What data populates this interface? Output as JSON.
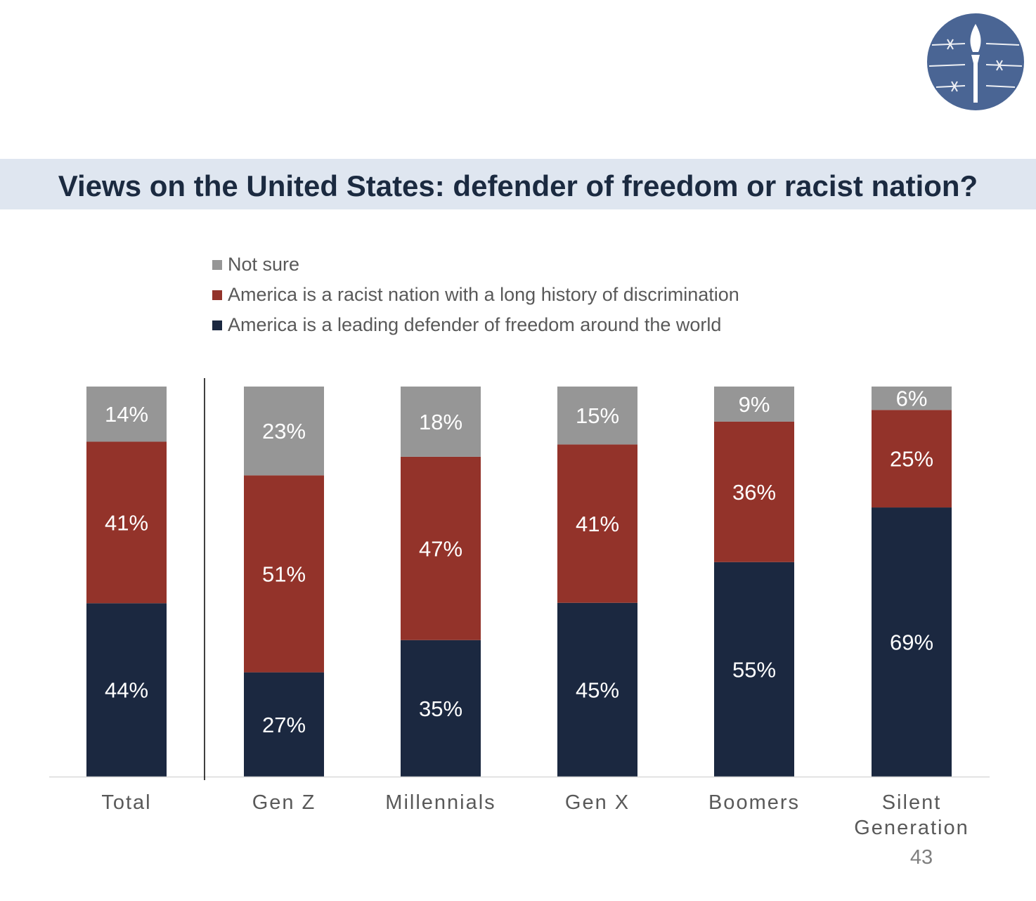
{
  "slide": {
    "title": "Views on the United States: defender of freedom or racist nation?",
    "page_number": "43"
  },
  "colors": {
    "freedom": "#1b2840",
    "racist": "#93332a",
    "not_sure": "#969696",
    "title_band": "#dfe6f0",
    "logo": "#4a6594"
  },
  "chart_data": {
    "type": "bar",
    "stacked": true,
    "percent_stacked": true,
    "title": "Views on the United States: defender of freedom or racist nation?",
    "categories": [
      "Total",
      "Gen Z",
      "Millennials",
      "Gen X",
      "Boomers",
      "Silent Generation"
    ],
    "category_label_lines": [
      [
        "Total"
      ],
      [
        "Gen Z"
      ],
      [
        "Millennials"
      ],
      [
        "Gen X"
      ],
      [
        "Boomers"
      ],
      [
        "Silent",
        "Generation"
      ]
    ],
    "series": [
      {
        "key": "freedom",
        "name": "America is a leading defender of freedom around the world",
        "values": [
          44,
          27,
          35,
          45,
          55,
          69
        ],
        "labels": [
          "44%",
          "27%",
          "35%",
          "45%",
          "55%",
          "69%"
        ]
      },
      {
        "key": "racist",
        "name": "America is a racist nation with a long history of discrimination",
        "values": [
          41,
          51,
          47,
          41,
          36,
          25
        ],
        "labels": [
          "41%",
          "51%",
          "47%",
          "41%",
          "36%",
          "25%"
        ]
      },
      {
        "key": "not_sure",
        "name": "Not sure",
        "values": [
          14,
          23,
          18,
          15,
          9,
          6
        ],
        "labels": [
          "14%",
          "23%",
          "18%",
          "15%",
          "9%",
          "6%"
        ]
      }
    ],
    "legend_order": [
      "Not sure",
      "America is a racist nation with a long history of discrimination",
      "America is a leading defender of freedom around the world"
    ],
    "legend_position": "top",
    "ylim": [
      0,
      100
    ],
    "grid": false,
    "separator_after_category": "Total"
  }
}
